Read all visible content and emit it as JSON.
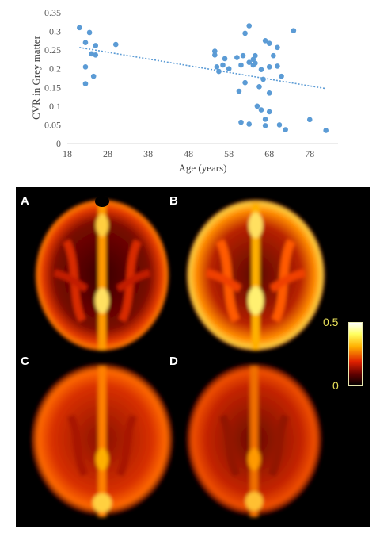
{
  "chart_data": {
    "type": "scatter",
    "title": "",
    "xlabel": "Age (years)",
    "ylabel": "CVR in Grey matter",
    "xlim": [
      18,
      85
    ],
    "ylim": [
      0,
      0.35
    ],
    "xticks": [
      "18",
      "28",
      "38",
      "48",
      "58",
      "68",
      "78"
    ],
    "xtick_values": [
      18,
      28,
      38,
      48,
      58,
      68,
      78
    ],
    "yticks": [
      "0",
      "0.05",
      "0.1",
      "0.15",
      "0.2",
      "0.25",
      "0.3",
      "0.35"
    ],
    "ytick_values": [
      0,
      0.05,
      0.1,
      0.15,
      0.2,
      0.25,
      0.3,
      0.35
    ],
    "grid": false,
    "marker_color": "#5b9bd5",
    "trendline": {
      "style": "dotted",
      "color": "#5b9bd5",
      "x": [
        21,
        82
      ],
      "y": [
        0.257,
        0.147
      ]
    },
    "points": [
      [
        21,
        0.31
      ],
      [
        22.5,
        0.27
      ],
      [
        22.5,
        0.205
      ],
      [
        22.5,
        0.16
      ],
      [
        23.5,
        0.297
      ],
      [
        24,
        0.24
      ],
      [
        24.5,
        0.18
      ],
      [
        25,
        0.262
      ],
      [
        25,
        0.237
      ],
      [
        30,
        0.265
      ],
      [
        54.5,
        0.247
      ],
      [
        54.5,
        0.237
      ],
      [
        55,
        0.205
      ],
      [
        55.5,
        0.193
      ],
      [
        56.5,
        0.21
      ],
      [
        57,
        0.227
      ],
      [
        58,
        0.2
      ],
      [
        60,
        0.23
      ],
      [
        60.5,
        0.14
      ],
      [
        61,
        0.21
      ],
      [
        61.5,
        0.235
      ],
      [
        61,
        0.057
      ],
      [
        62,
        0.163
      ],
      [
        62,
        0.295
      ],
      [
        63,
        0.315
      ],
      [
        63,
        0.217
      ],
      [
        63,
        0.052
      ],
      [
        64,
        0.21
      ],
      [
        64,
        0.225
      ],
      [
        64.5,
        0.215
      ],
      [
        64.5,
        0.235
      ],
      [
        65,
        0.1
      ],
      [
        65.5,
        0.152
      ],
      [
        66,
        0.09
      ],
      [
        66,
        0.198
      ],
      [
        66.5,
        0.172
      ],
      [
        67,
        0.275
      ],
      [
        67,
        0.065
      ],
      [
        67,
        0.048
      ],
      [
        68,
        0.268
      ],
      [
        68,
        0.205
      ],
      [
        68,
        0.135
      ],
      [
        68,
        0.085
      ],
      [
        69,
        0.235
      ],
      [
        70,
        0.257
      ],
      [
        70,
        0.207
      ],
      [
        70.5,
        0.05
      ],
      [
        71,
        0.18
      ],
      [
        72,
        0.037
      ],
      [
        74,
        0.302
      ],
      [
        78,
        0.064
      ],
      [
        82,
        0.035
      ]
    ]
  },
  "brain_figure": {
    "panels": [
      {
        "label": "A",
        "intensity": "low"
      },
      {
        "label": "B",
        "intensity": "high"
      },
      {
        "label": "C",
        "intensity": "medium"
      },
      {
        "label": "D",
        "intensity": "medium-low"
      }
    ],
    "colorbar": {
      "max_label": "0.5",
      "min_label": "0",
      "colors": [
        "#000000",
        "#600000",
        "#e02000",
        "#ffb000",
        "#ffff60",
        "#ffffff"
      ]
    }
  }
}
